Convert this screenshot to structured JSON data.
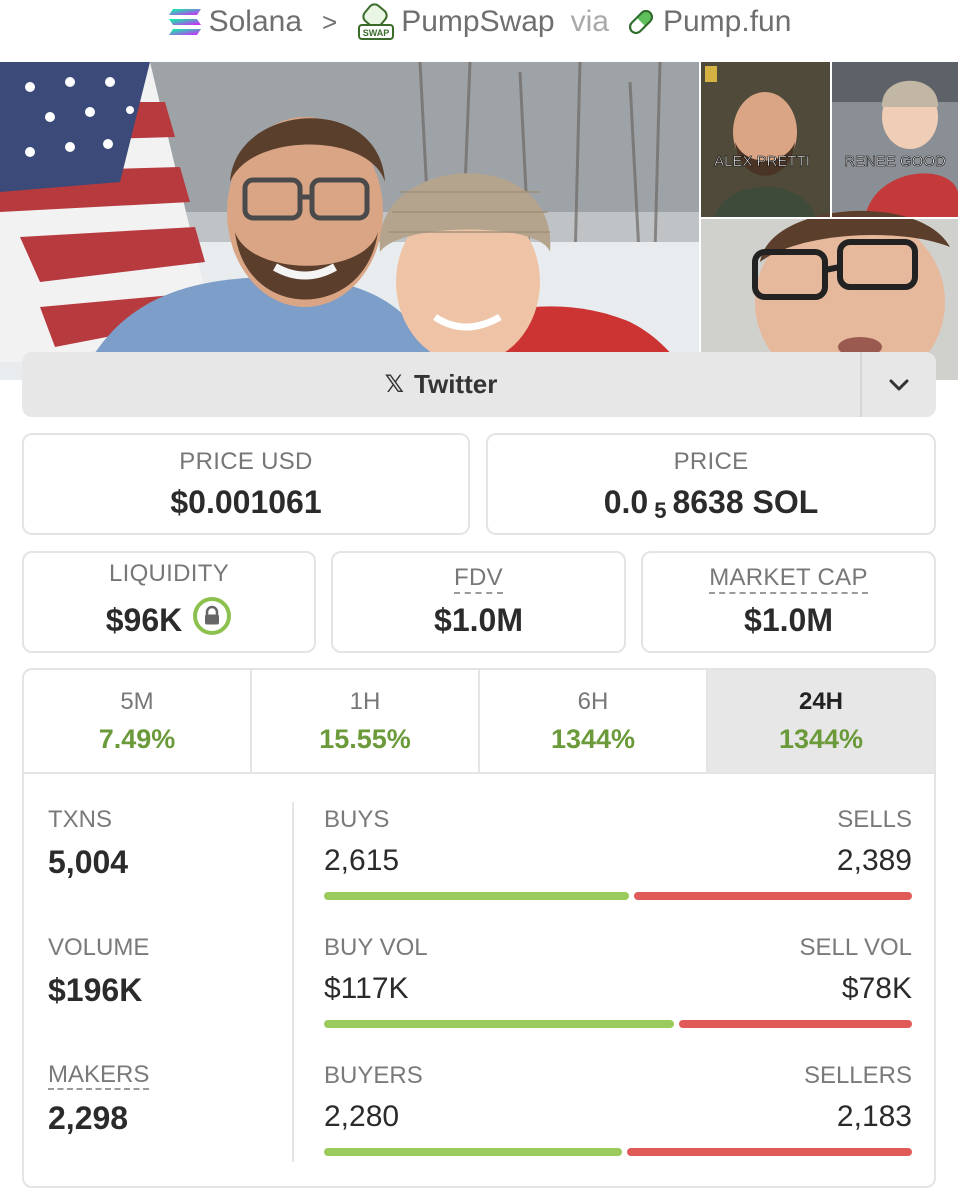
{
  "breadcrumb": {
    "chain": "Solana",
    "separator": ">",
    "dex": "PumpSwap",
    "dex_badge": "SWAP",
    "via": "via",
    "launchpad": "Pump.fun"
  },
  "banner": {
    "captions": [
      "ALEX PRETTI",
      "RENEE GOOD"
    ]
  },
  "social": {
    "twitter_icon": "x-logo-icon",
    "twitter_label": "Twitter",
    "toggle_icon": "chevron-down-icon"
  },
  "prices": {
    "usd_label": "PRICE USD",
    "usd_value": "$0.001061",
    "native_label": "PRICE",
    "native_prefix": "0.0",
    "native_zeros": "5",
    "native_suffix": "8638 SOL"
  },
  "metrics": {
    "liquidity_label": "LIQUIDITY",
    "liquidity_value": "$96K",
    "fdv_label": "FDV",
    "fdv_value": "$1.0M",
    "mcap_label": "MARKET CAP",
    "mcap_value": "$1.0M"
  },
  "timeframes": [
    {
      "label": "5M",
      "change": "7.49%"
    },
    {
      "label": "1H",
      "change": "15.55%"
    },
    {
      "label": "6H",
      "change": "1344%"
    },
    {
      "label": "24H",
      "change": "1344%"
    }
  ],
  "active_timeframe": "24H",
  "stats": {
    "txns_label": "TXNS",
    "txns_value": "5,004",
    "volume_label": "VOLUME",
    "volume_value": "$196K",
    "makers_label": "MAKERS",
    "makers_value": "2,298"
  },
  "splits": [
    {
      "left_label": "BUYS",
      "left_value": "2,615",
      "right_label": "SELLS",
      "right_value": "2,389",
      "buy_fraction": 0.523
    },
    {
      "left_label": "BUY VOL",
      "left_value": "$117K",
      "right_label": "SELL VOL",
      "right_value": "$78K",
      "buy_fraction": 0.6
    },
    {
      "left_label": "BUYERS",
      "left_value": "2,280",
      "right_label": "SELLERS",
      "right_value": "2,183",
      "buy_fraction": 0.511
    }
  ],
  "colors": {
    "positive": "#6b9a3a",
    "buy_bar": "#9bc95b",
    "sell_bar": "#e05a58",
    "lock_icon": "#8cc04f"
  }
}
